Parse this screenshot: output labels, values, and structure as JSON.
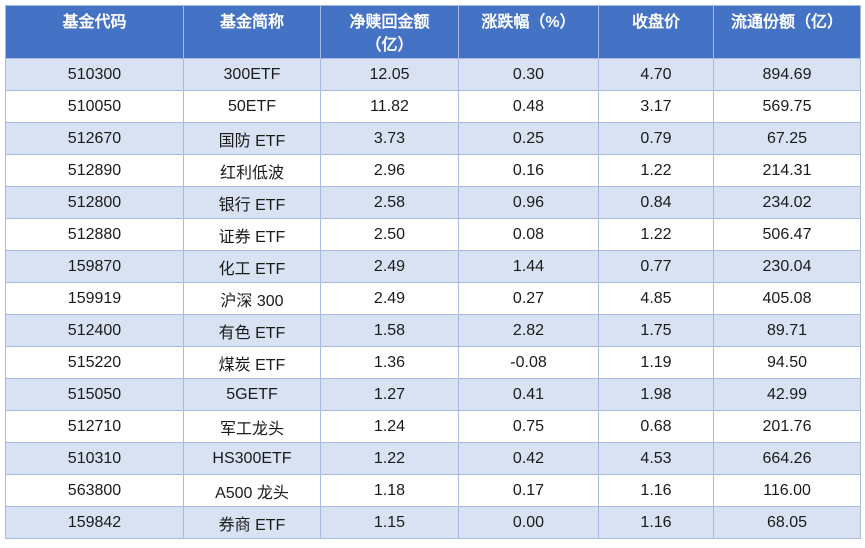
{
  "colors": {
    "header_bg": "#4472c4",
    "header_text": "#ffffff",
    "row_shaded": "#d9e2f3",
    "row_plain": "#ffffff",
    "grid_border": "#a7bbe2",
    "body_text": "#1a1a1a"
  },
  "chart_data": {
    "type": "table",
    "columns": [
      "基金代码",
      "基金简称",
      "净赎回金额（亿）",
      "涨跌幅（%）",
      "收盘价",
      "流通份额（亿）"
    ],
    "rows": [
      [
        "510300",
        "300ETF",
        "12.05",
        "0.30",
        "4.70",
        "894.69"
      ],
      [
        "510050",
        "50ETF",
        "11.82",
        "0.48",
        "3.17",
        "569.75"
      ],
      [
        "512670",
        "国防 ETF",
        "3.73",
        "0.25",
        "0.79",
        "67.25"
      ],
      [
        "512890",
        "红利低波",
        "2.96",
        "0.16",
        "1.22",
        "214.31"
      ],
      [
        "512800",
        "银行 ETF",
        "2.58",
        "0.96",
        "0.84",
        "234.02"
      ],
      [
        "512880",
        "证券 ETF",
        "2.50",
        "0.08",
        "1.22",
        "506.47"
      ],
      [
        "159870",
        "化工 ETF",
        "2.49",
        "1.44",
        "0.77",
        "230.04"
      ],
      [
        "159919",
        "沪深 300",
        "2.49",
        "0.27",
        "4.85",
        "405.08"
      ],
      [
        "512400",
        "有色 ETF",
        "1.58",
        "2.82",
        "1.75",
        "89.71"
      ],
      [
        "515220",
        "煤炭 ETF",
        "1.36",
        "-0.08",
        "1.19",
        "94.50"
      ],
      [
        "515050",
        "5GETF",
        "1.27",
        "0.41",
        "1.98",
        "42.99"
      ],
      [
        "512710",
        "军工龙头",
        "1.24",
        "0.75",
        "0.68",
        "201.76"
      ],
      [
        "510310",
        "HS300ETF",
        "1.22",
        "0.42",
        "4.53",
        "664.26"
      ],
      [
        "563800",
        "A500 龙头",
        "1.18",
        "0.17",
        "1.16",
        "116.00"
      ],
      [
        "159842",
        "券商 ETF",
        "1.15",
        "0.00",
        "1.16",
        "68.05"
      ]
    ]
  }
}
